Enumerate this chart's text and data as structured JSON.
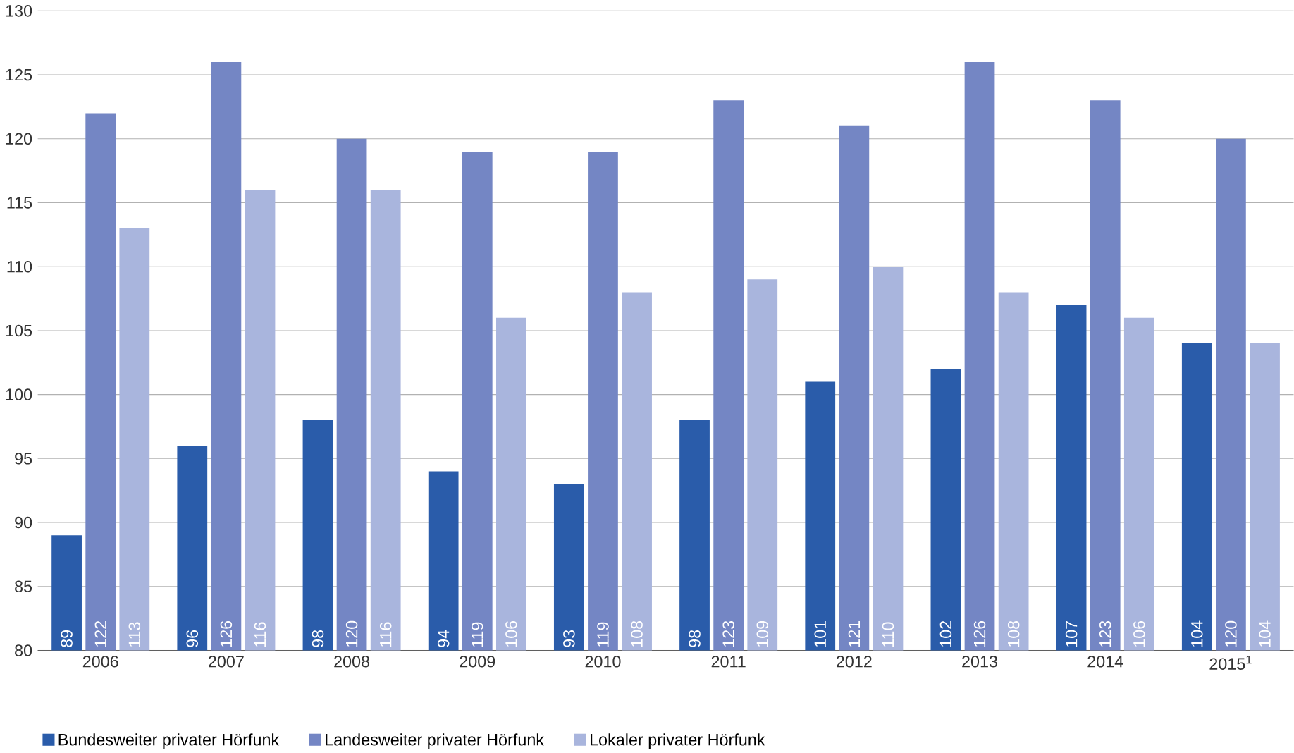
{
  "chart_data": {
    "type": "bar",
    "categories": [
      "2006",
      "2007",
      "2008",
      "2009",
      "2010",
      "2011",
      "2012",
      "2013",
      "2014",
      "2015$^{1}$"
    ],
    "series": [
      {
        "name": "Bundesweiter privater Hörfunk",
        "color": "#2a5caa",
        "values": [
          89,
          96,
          98,
          94,
          93,
          98,
          101,
          102,
          107,
          104
        ]
      },
      {
        "name": "Landesweiter privater Hörfunk",
        "color": "#7486c4",
        "values": [
          122,
          126,
          120,
          119,
          119,
          123,
          121,
          126,
          123,
          120
        ]
      },
      {
        "name": "Lokaler privater Hörfunk",
        "color": "#a9b5dd",
        "values": [
          113,
          116,
          116,
          106,
          108,
          109,
          110,
          108,
          106,
          104
        ]
      }
    ],
    "ylim": [
      80,
      130
    ],
    "yticks": [
      80,
      85,
      90,
      95,
      100,
      105,
      110,
      115,
      120,
      125,
      130
    ],
    "grid": "y",
    "legend": "bottom",
    "data_labels": true
  }
}
